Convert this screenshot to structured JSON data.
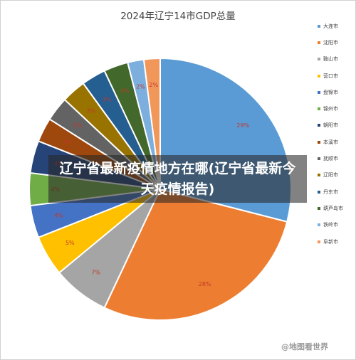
{
  "chart_data": {
    "type": "pie",
    "title": "2024年辽宁14市GDP总量",
    "slices": [
      {
        "label": "大连市",
        "value": 29,
        "value_label": "29%",
        "color": "#5b9bd5"
      },
      {
        "label": "沈阳市",
        "value": 28,
        "value_label": "28%",
        "color": "#ed7d31"
      },
      {
        "label": "鞍山市",
        "value": 7,
        "value_label": "7%",
        "color": "#a5a5a5"
      },
      {
        "label": "营口市",
        "value": 5,
        "value_label": "5%",
        "color": "#ffc000"
      },
      {
        "label": "盘锦市",
        "value": 4,
        "value_label": "4%",
        "color": "#4472c4"
      },
      {
        "label": "锦州市",
        "value": 4,
        "value_label": "4%",
        "color": "#70ad47"
      },
      {
        "label": "朝阳市",
        "value": 4,
        "value_label": "4%",
        "color": "#264478"
      },
      {
        "label": "本溪市",
        "value": 3,
        "value_label": "3%",
        "color": "#9e480e"
      },
      {
        "label": "抚顺市",
        "value": 3,
        "value_label": "3%",
        "color": "#636363"
      },
      {
        "label": "辽阳市",
        "value": 3,
        "value_label": "3%",
        "color": "#997300"
      },
      {
        "label": "丹东市",
        "value": 3,
        "value_label": "3%",
        "color": "#255e91"
      },
      {
        "label": "葫芦岛市",
        "value": 3,
        "value_label": "3%",
        "color": "#43682b"
      },
      {
        "label": "铁岭市",
        "value": 2,
        "value_label": "2%",
        "color": "#7cafdd"
      },
      {
        "label": "阜新市",
        "value": 2,
        "value_label": "2%",
        "color": "#f1975a"
      }
    ],
    "legend_position": "right"
  },
  "banner": {
    "text": "辽宁省最新疫情地方在哪(辽宁省最新今天疫情报告)"
  },
  "watermark": {
    "text": "@地图看世界"
  }
}
